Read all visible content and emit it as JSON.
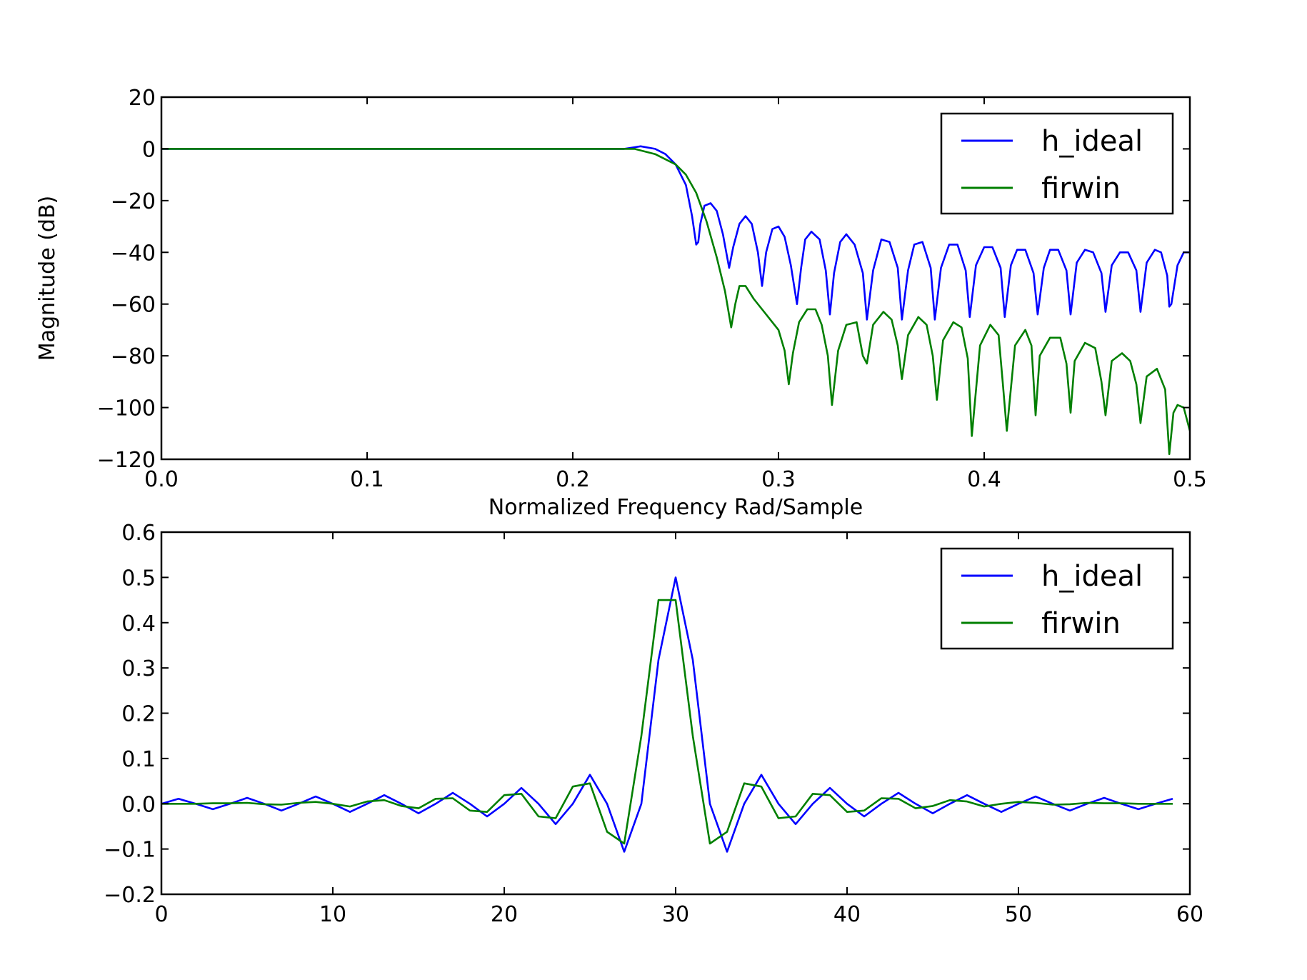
{
  "chart_data": [
    {
      "type": "line",
      "title": "",
      "xlabel": "Normalized Frequency Rad/Sample",
      "ylabel": "Magnitude (dB)",
      "xlim": [
        0.0,
        0.5
      ],
      "ylim": [
        -120,
        20
      ],
      "x_ticks": [
        0.0,
        0.1,
        0.2,
        0.3,
        0.4,
        0.5
      ],
      "x_tick_labels": [
        "0.0",
        "0.1",
        "0.2",
        "0.3",
        "0.4",
        "0.5"
      ],
      "y_ticks": [
        20,
        0,
        -20,
        -40,
        -60,
        -80,
        -100,
        -120
      ],
      "y_tick_labels": [
        "20",
        "0",
        "−20",
        "−40",
        "−60",
        "−80",
        "−100",
        "−120"
      ],
      "grid": false,
      "legend_position": "top-right",
      "series": [
        {
          "name": "h_ideal",
          "color": "#0000ff",
          "x": [
            0.0,
            0.05,
            0.1,
            0.15,
            0.2,
            0.215,
            0.225,
            0.233,
            0.24,
            0.245,
            0.25,
            0.255,
            0.258,
            0.26,
            0.261,
            0.262,
            0.264,
            0.267,
            0.27,
            0.273,
            0.276,
            0.278,
            0.281,
            0.284,
            0.287,
            0.29,
            0.292,
            0.294,
            0.297,
            0.3,
            0.303,
            0.306,
            0.309,
            0.311,
            0.313,
            0.316,
            0.32,
            0.323,
            0.325,
            0.327,
            0.33,
            0.333,
            0.337,
            0.341,
            0.343,
            0.346,
            0.35,
            0.354,
            0.358,
            0.36,
            0.363,
            0.366,
            0.37,
            0.374,
            0.376,
            0.379,
            0.383,
            0.387,
            0.391,
            0.393,
            0.396,
            0.4,
            0.404,
            0.408,
            0.41,
            0.413,
            0.416,
            0.42,
            0.424,
            0.426,
            0.429,
            0.432,
            0.436,
            0.44,
            0.442,
            0.445,
            0.449,
            0.453,
            0.457,
            0.459,
            0.462,
            0.466,
            0.47,
            0.474,
            0.476,
            0.479,
            0.483,
            0.486,
            0.489,
            0.49,
            0.491,
            0.494,
            0.497,
            0.5
          ],
          "y": [
            0,
            0,
            0,
            0,
            0,
            0,
            0,
            1,
            0,
            -2,
            -6,
            -14,
            -26,
            -37,
            -36,
            -29,
            -22,
            -21,
            -24,
            -33,
            -46,
            -38,
            -29,
            -26,
            -29,
            -40,
            -53,
            -40,
            -31,
            -30,
            -34,
            -45,
            -60,
            -46,
            -35,
            -32,
            -35,
            -47,
            -64,
            -48,
            -36,
            -33,
            -37,
            -48,
            -66,
            -47,
            -35,
            -36,
            -46,
            -66,
            -47,
            -37,
            -36,
            -46,
            -66,
            -46,
            -37,
            -37,
            -47,
            -65,
            -45,
            -38,
            -38,
            -46,
            -65,
            -45,
            -39,
            -39,
            -48,
            -64,
            -46,
            -39,
            -39,
            -47,
            -64,
            -44,
            -39,
            -40,
            -48,
            -63,
            -45,
            -40,
            -40,
            -47,
            -63,
            -44,
            -39,
            -40,
            -49,
            -61,
            -60,
            -45,
            -40,
            -40
          ]
        },
        {
          "name": "firwin",
          "color": "#007f00",
          "x": [
            0.0,
            0.05,
            0.1,
            0.15,
            0.2,
            0.22,
            0.23,
            0.24,
            0.25,
            0.255,
            0.26,
            0.265,
            0.27,
            0.274,
            0.277,
            0.279,
            0.281,
            0.284,
            0.288,
            0.292,
            0.296,
            0.3,
            0.303,
            0.305,
            0.307,
            0.31,
            0.314,
            0.318,
            0.321,
            0.324,
            0.326,
            0.329,
            0.333,
            0.338,
            0.341,
            0.343,
            0.346,
            0.351,
            0.355,
            0.358,
            0.36,
            0.363,
            0.368,
            0.372,
            0.375,
            0.377,
            0.38,
            0.385,
            0.389,
            0.392,
            0.394,
            0.398,
            0.403,
            0.407,
            0.409,
            0.411,
            0.415,
            0.42,
            0.423,
            0.425,
            0.427,
            0.432,
            0.437,
            0.44,
            0.442,
            0.444,
            0.449,
            0.454,
            0.457,
            0.459,
            0.462,
            0.467,
            0.471,
            0.474,
            0.476,
            0.479,
            0.484,
            0.488,
            0.49,
            0.492,
            0.494,
            0.497,
            0.5
          ],
          "y": [
            0,
            0,
            0,
            0,
            0,
            0,
            0,
            -2,
            -6,
            -10,
            -17,
            -28,
            -42,
            -55,
            -69,
            -60,
            -53,
            -53,
            -58,
            -62,
            -66,
            -70,
            -78,
            -91,
            -79,
            -67,
            -62,
            -62,
            -68,
            -80,
            -99,
            -78,
            -68,
            -67,
            -80,
            -83,
            -68,
            -63,
            -66,
            -76,
            -89,
            -72,
            -65,
            -68,
            -80,
            -97,
            -74,
            -67,
            -69,
            -81,
            -111,
            -76,
            -68,
            -72,
            -90,
            -109,
            -76,
            -70,
            -76,
            -103,
            -80,
            -73,
            -73,
            -83,
            -102,
            -82,
            -75,
            -77,
            -90,
            -103,
            -82,
            -79,
            -82,
            -91,
            -106,
            -88,
            -85,
            -93,
            -118,
            -102,
            -99,
            -100,
            -109
          ]
        }
      ]
    },
    {
      "type": "line",
      "title": "",
      "xlabel": "",
      "ylabel": "",
      "xlim": [
        0,
        60
      ],
      "ylim": [
        -0.2,
        0.6
      ],
      "x_ticks": [
        0,
        10,
        20,
        30,
        40,
        50,
        60
      ],
      "x_tick_labels": [
        "0",
        "10",
        "20",
        "30",
        "40",
        "50",
        "60"
      ],
      "y_ticks": [
        0.6,
        0.5,
        0.4,
        0.3,
        0.2,
        0.1,
        0.0,
        -0.1,
        -0.2
      ],
      "y_tick_labels": [
        "0.6",
        "0.5",
        "0.4",
        "0.3",
        "0.2",
        "0.1",
        "0.0",
        "−0.1",
        "−0.2"
      ],
      "grid": false,
      "legend_position": "top-right",
      "series": [
        {
          "name": "h_ideal",
          "color": "#0000ff",
          "x": [
            0,
            1,
            2,
            3,
            4,
            5,
            6,
            7,
            8,
            9,
            10,
            11,
            12,
            13,
            14,
            15,
            16,
            17,
            18,
            19,
            20,
            21,
            22,
            23,
            24,
            25,
            26,
            27,
            28,
            29,
            30,
            31,
            32,
            33,
            34,
            35,
            36,
            37,
            38,
            39,
            40,
            41,
            42,
            43,
            44,
            45,
            46,
            47,
            48,
            49,
            50,
            51,
            52,
            53,
            54,
            55,
            56,
            57,
            58,
            59
          ],
          "y": [
            0.0,
            0.011,
            0.0,
            -0.012,
            0.0,
            0.013,
            0.0,
            -0.015,
            0.0,
            0.016,
            0.0,
            -0.018,
            0.0,
            0.019,
            0.0,
            -0.021,
            0.0,
            0.024,
            0.0,
            -0.028,
            0.0,
            0.035,
            0.0,
            -0.045,
            0.0,
            0.064,
            0.0,
            -0.106,
            0.0,
            0.318,
            0.5,
            0.318,
            0.0,
            -0.106,
            0.0,
            0.064,
            0.0,
            -0.045,
            0.0,
            0.035,
            0.0,
            -0.028,
            0.0,
            0.024,
            0.0,
            -0.021,
            0.0,
            0.019,
            0.0,
            -0.018,
            0.0,
            0.016,
            0.0,
            -0.015,
            0.0,
            0.013,
            0.0,
            -0.012,
            0.0,
            0.011
          ]
        },
        {
          "name": "firwin",
          "color": "#007f00",
          "x": [
            0,
            1,
            2,
            3,
            4,
            5,
            6,
            7,
            8,
            9,
            10,
            11,
            12,
            13,
            14,
            15,
            16,
            17,
            18,
            19,
            20,
            21,
            22,
            23,
            24,
            25,
            26,
            27,
            28,
            29,
            30,
            31,
            32,
            33,
            34,
            35,
            36,
            37,
            38,
            39,
            40,
            41,
            42,
            43,
            44,
            45,
            46,
            47,
            48,
            49,
            50,
            51,
            52,
            53,
            54,
            55,
            56,
            57,
            58,
            59
          ],
          "y": [
            0.0,
            0.0,
            0.0,
            0.001,
            0.001,
            0.002,
            -0.001,
            -0.002,
            0.002,
            0.004,
            0.0,
            -0.006,
            0.005,
            0.008,
            -0.005,
            -0.01,
            0.011,
            0.012,
            -0.015,
            -0.018,
            0.019,
            0.022,
            -0.028,
            -0.032,
            0.038,
            0.045,
            -0.062,
            -0.088,
            0.15,
            0.45,
            0.45,
            0.15,
            -0.088,
            -0.062,
            0.045,
            0.038,
            -0.032,
            -0.028,
            0.022,
            0.019,
            -0.018,
            -0.015,
            0.012,
            0.011,
            -0.01,
            -0.005,
            0.008,
            0.005,
            -0.006,
            0.0,
            0.004,
            0.002,
            -0.002,
            -0.001,
            0.002,
            0.001,
            0.001,
            0.0,
            0.0,
            0.0
          ]
        }
      ]
    }
  ]
}
